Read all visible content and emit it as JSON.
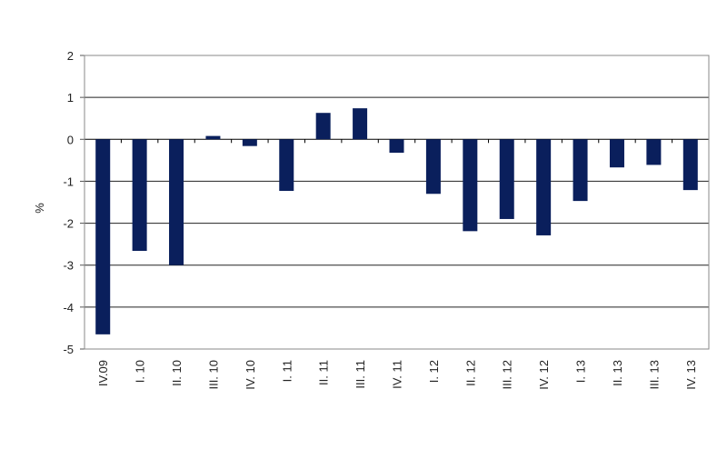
{
  "chart_data": {
    "type": "bar",
    "title": "",
    "xlabel": "",
    "ylabel": "%",
    "ylim": [
      -5,
      2
    ],
    "yticks": [
      2,
      1,
      0,
      -1,
      -2,
      -3,
      -4,
      -5
    ],
    "grid": true,
    "bar_color": "#0a1f5c",
    "categories": [
      "IV.09",
      "I. 10",
      "II. 10",
      "III. 10",
      "IV. 10",
      "I. 11",
      "II. 11",
      "III. 11",
      "IV. 11",
      "I. 12",
      "II. 12",
      "III. 12",
      "IV. 12",
      "I. 13",
      "II. 13",
      "III. 13",
      "IV. 13"
    ],
    "values": [
      -4.65,
      -2.66,
      -3.0,
      0.08,
      -0.16,
      -1.23,
      0.63,
      0.74,
      -0.32,
      -1.3,
      -2.19,
      -1.9,
      -2.29,
      -1.47,
      -0.67,
      -0.61,
      -1.21
    ]
  }
}
